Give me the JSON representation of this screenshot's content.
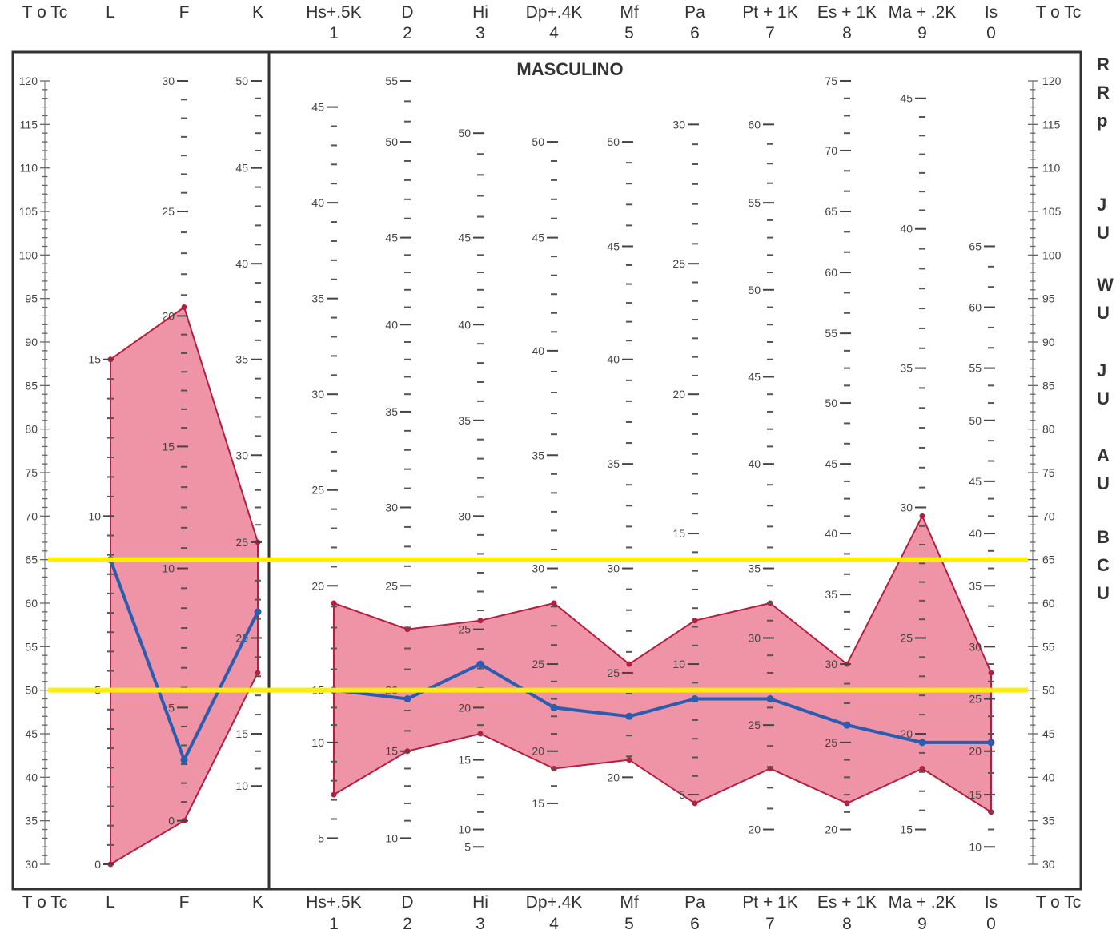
{
  "chart_data": {
    "type": "line",
    "title": "MASCULINO",
    "scale_label": "T o Tc",
    "axis_label_left": "T o Tc",
    "axis_label_right": "T o Tc",
    "ylim": [
      30,
      120
    ],
    "y_ticks": [
      30,
      35,
      40,
      45,
      50,
      55,
      60,
      65,
      70,
      75,
      80,
      85,
      90,
      95,
      100,
      105,
      110,
      115,
      120
    ],
    "validity_scales": [
      {
        "abbr": "L",
        "num": ""
      },
      {
        "abbr": "F",
        "num": ""
      },
      {
        "abbr": "K",
        "num": ""
      }
    ],
    "clinical_scales": [
      {
        "abbr": "Hs+.5K",
        "num": "1"
      },
      {
        "abbr": "D",
        "num": "2"
      },
      {
        "abbr": "Hi",
        "num": "3"
      },
      {
        "abbr": "Dp+.4K",
        "num": "4"
      },
      {
        "abbr": "Mf",
        "num": "5"
      },
      {
        "abbr": "Pa",
        "num": "6"
      },
      {
        "abbr": "Pt + 1K",
        "num": "7"
      },
      {
        "abbr": "Es + 1K",
        "num": "8"
      },
      {
        "abbr": "Ma + .2K",
        "num": "9"
      },
      {
        "abbr": "Is",
        "num": "0"
      }
    ],
    "series": [
      {
        "values": [
          65,
          42,
          59
        ],
        "upper": [
          88,
          94,
          67
        ],
        "lower": [
          30,
          35,
          52
        ],
        "color": "#2a5db0",
        "band_color": "#e23a5c"
      },
      {
        "values": [
          50,
          49,
          53,
          48,
          47,
          49,
          49,
          46,
          44,
          44
        ],
        "upper": [
          60,
          57,
          58,
          60,
          53,
          58,
          60,
          53,
          70,
          52
        ],
        "lower": [
          38,
          43,
          45,
          41,
          42,
          37,
          41,
          37,
          41,
          36
        ],
        "color": "#2a5db0",
        "band_color": "#e23a5c"
      }
    ],
    "reference_lines": [
      {
        "value": 65,
        "color": "#ffee00"
      },
      {
        "value": 50,
        "color": "#ffee00"
      }
    ],
    "raw_scale_labels": {
      "L": [
        {
          "v": "0",
          "t": 30
        },
        {
          "v": "5",
          "t": 50
        },
        {
          "v": "10",
          "t": 70
        },
        {
          "v": "15",
          "t": 88
        }
      ],
      "F": [
        {
          "v": "0",
          "t": 35
        },
        {
          "v": "5",
          "t": 48
        },
        {
          "v": "10",
          "t": 64
        },
        {
          "v": "15",
          "t": 78
        },
        {
          "v": "20",
          "t": 93
        },
        {
          "v": "25",
          "t": 105
        },
        {
          "v": "30",
          "t": 120
        }
      ],
      "K": [
        {
          "v": "10",
          "t": 39
        },
        {
          "v": "15",
          "t": 45
        },
        {
          "v": "20",
          "t": 56
        },
        {
          "v": "25",
          "t": 67
        },
        {
          "v": "30",
          "t": 77
        },
        {
          "v": "35",
          "t": 88
        },
        {
          "v": "40",
          "t": 99
        },
        {
          "v": "45",
          "t": 110
        },
        {
          "v": "50",
          "t": 120
        }
      ],
      "Hs+.5K": [
        {
          "v": "5",
          "t": 33
        },
        {
          "v": "10",
          "t": 44
        },
        {
          "v": "15",
          "t": 50
        },
        {
          "v": "20",
          "t": 62
        },
        {
          "v": "25",
          "t": 73
        },
        {
          "v": "30",
          "t": 84
        },
        {
          "v": "35",
          "t": 95
        },
        {
          "v": "40",
          "t": 106
        },
        {
          "v": "45",
          "t": 117
        }
      ],
      "D": [
        {
          "v": "10",
          "t": 33
        },
        {
          "v": "15",
          "t": 43
        },
        {
          "v": "20",
          "t": 50
        },
        {
          "v": "25",
          "t": 62
        },
        {
          "v": "30",
          "t": 71
        },
        {
          "v": "35",
          "t": 82
        },
        {
          "v": "40",
          "t": 92
        },
        {
          "v": "45",
          "t": 102
        },
        {
          "v": "50",
          "t": 113
        },
        {
          "v": "55",
          "t": 120
        }
      ],
      "Hi": [
        {
          "v": "5",
          "t": 32
        },
        {
          "v": "10",
          "t": 34
        },
        {
          "v": "15",
          "t": 42
        },
        {
          "v": "20",
          "t": 48
        },
        {
          "v": "25",
          "t": 57
        },
        {
          "v": "30",
          "t": 70
        },
        {
          "v": "35",
          "t": 81
        },
        {
          "v": "40",
          "t": 92
        },
        {
          "v": "45",
          "t": 102
        },
        {
          "v": "50",
          "t": 114
        }
      ],
      "Dp+.4K": [
        {
          "v": "15",
          "t": 37
        },
        {
          "v": "20",
          "t": 43
        },
        {
          "v": "25",
          "t": 53
        },
        {
          "v": "30",
          "t": 64
        },
        {
          "v": "35",
          "t": 77
        },
        {
          "v": "40",
          "t": 89
        },
        {
          "v": "45",
          "t": 102
        },
        {
          "v": "50",
          "t": 113
        }
      ],
      "Mf": [
        {
          "v": "20",
          "t": 40
        },
        {
          "v": "25",
          "t": 52
        },
        {
          "v": "30",
          "t": 64
        },
        {
          "v": "35",
          "t": 76
        },
        {
          "v": "40",
          "t": 88
        },
        {
          "v": "45",
          "t": 101
        },
        {
          "v": "50",
          "t": 113
        }
      ],
      "Pa": [
        {
          "v": "5",
          "t": 38
        },
        {
          "v": "10",
          "t": 53
        },
        {
          "v": "15",
          "t": 68
        },
        {
          "v": "20",
          "t": 84
        },
        {
          "v": "25",
          "t": 99
        },
        {
          "v": "30",
          "t": 115
        }
      ],
      "Pt + 1K": [
        {
          "v": "20",
          "t": 34
        },
        {
          "v": "25",
          "t": 46
        },
        {
          "v": "30",
          "t": 56
        },
        {
          "v": "35",
          "t": 64
        },
        {
          "v": "40",
          "t": 76
        },
        {
          "v": "45",
          "t": 86
        },
        {
          "v": "50",
          "t": 96
        },
        {
          "v": "55",
          "t": 106
        },
        {
          "v": "60",
          "t": 115
        }
      ],
      "Es + 1K": [
        {
          "v": "20",
          "t": 34
        },
        {
          "v": "25",
          "t": 44
        },
        {
          "v": "30",
          "t": 53
        },
        {
          "v": "35",
          "t": 61
        },
        {
          "v": "40",
          "t": 68
        },
        {
          "v": "45",
          "t": 76
        },
        {
          "v": "50",
          "t": 83
        },
        {
          "v": "55",
          "t": 91
        },
        {
          "v": "60",
          "t": 98
        },
        {
          "v": "65",
          "t": 105
        },
        {
          "v": "70",
          "t": 112
        },
        {
          "v": "75",
          "t": 120
        }
      ],
      "Ma + .2K": [
        {
          "v": "15",
          "t": 34
        },
        {
          "v": "20",
          "t": 45
        },
        {
          "v": "25",
          "t": 56
        },
        {
          "v": "30",
          "t": 71
        },
        {
          "v": "35",
          "t": 87
        },
        {
          "v": "40",
          "t": 103
        },
        {
          "v": "45",
          "t": 118
        }
      ],
      "Is": [
        {
          "v": "10",
          "t": 32
        },
        {
          "v": "15",
          "t": 38
        },
        {
          "v": "20",
          "t": 43
        },
        {
          "v": "25",
          "t": 49
        },
        {
          "v": "30",
          "t": 55
        },
        {
          "v": "35",
          "t": 62
        },
        {
          "v": "40",
          "t": 68
        },
        {
          "v": "45",
          "t": 74
        },
        {
          "v": "50",
          "t": 81
        },
        {
          "v": "55",
          "t": 87
        },
        {
          "v": "60",
          "t": 94
        },
        {
          "v": "65",
          "t": 101
        }
      ]
    },
    "side_text": [
      "R",
      "R",
      "p",
      "J",
      "U",
      "W",
      "U",
      "J",
      "U",
      "A",
      "U",
      "B",
      "C",
      "U"
    ]
  }
}
